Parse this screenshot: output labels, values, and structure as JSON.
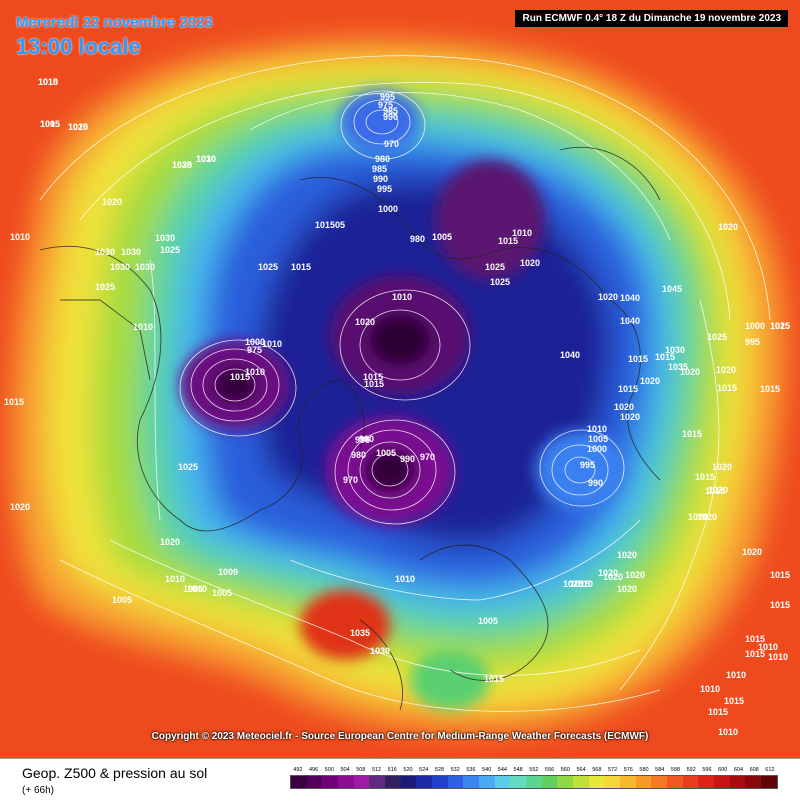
{
  "header": {
    "date": "Mercredi 22 novembre 2023",
    "time": "13:00 locale",
    "run": "Run ECMWF 0.4° 18 Z du Dimanche 19 novembre 2023"
  },
  "footer": {
    "title": "Geop. Z500 & pression au sol",
    "subtitle": "(+ 66h)",
    "copyright": "Copyright © 2023 Meteociel.fr - Source European Centre for Medium-Range Weather Forecasts (ECMWF)"
  },
  "legend": {
    "labels": [
      "492",
      "496",
      "500",
      "504",
      "508",
      "512",
      "516",
      "520",
      "524",
      "528",
      "532",
      "536",
      "540",
      "544",
      "548",
      "552",
      "556",
      "560",
      "564",
      "568",
      "572",
      "576",
      "580",
      "584",
      "588",
      "592",
      "596",
      "600",
      "604",
      "608",
      "612"
    ],
    "colors": [
      "#3a0040",
      "#55005c",
      "#700078",
      "#8a0d94",
      "#a01aa8",
      "#602a80",
      "#302060",
      "#1a1a7a",
      "#1c2aa6",
      "#2040c8",
      "#2c60e0",
      "#3a86f0",
      "#4aaaf6",
      "#5ccde8",
      "#62dcc0",
      "#5ad690",
      "#62d060",
      "#8ed846",
      "#bfe03a",
      "#e8e83a",
      "#f8d838",
      "#f8b830",
      "#f89a2a",
      "#f47a24",
      "#ee5a20",
      "#e83c1c",
      "#de2418",
      "#c81414",
      "#a80c10",
      "#88080c",
      "#600408"
    ]
  },
  "pressure_labels": [
    "1015",
    "1010",
    "1015",
    "1025",
    "1030",
    "1020",
    "1010",
    "1030",
    "1030",
    "1030",
    "1025",
    "1030",
    "1025",
    "1025",
    "1015",
    "1010",
    "1010",
    "995",
    "975",
    "985",
    "990",
    "970",
    "980",
    "985",
    "990",
    "995",
    "1000",
    "101505",
    "1030",
    "1000",
    "1010",
    "1015",
    "1015",
    "1005",
    "1015",
    "1010",
    "1020",
    "1025",
    "1025",
    "1010",
    "1020",
    "1040",
    "1045",
    "1000",
    "995",
    "1040",
    "1040",
    "1030",
    "1025",
    "1035",
    "1020",
    "1015",
    "1020",
    "1020",
    "1020",
    "1015",
    "1015",
    "1015",
    "1020",
    "1020",
    "1010",
    "1005",
    "1000",
    "995",
    "990",
    "1015",
    "1020",
    "1020",
    "1015",
    "1020",
    "1020",
    "1010",
    "1010",
    "1020",
    "1010",
    "1005",
    "1009",
    "1005",
    "1005",
    "1035",
    "1030",
    "1025",
    "1015",
    "1020",
    "1020",
    "1025",
    "1015",
    "1015",
    "1020",
    "1015",
    "1015",
    "1015",
    "1015",
    "1010",
    "1010",
    "1010",
    "1010",
    "1015",
    "1010",
    "1015",
    "1020",
    "1020",
    "1015",
    "975",
    "970",
    "980",
    "990",
    "1005",
    "990",
    "970",
    "996",
    "980",
    "1005",
    "1025",
    "1020",
    "1015",
    "1010",
    "1020",
    "1015",
    "1015",
    "1020",
    "1025",
    "1015",
    "1005",
    "1015",
    "1020",
    "1030",
    "1010"
  ]
}
